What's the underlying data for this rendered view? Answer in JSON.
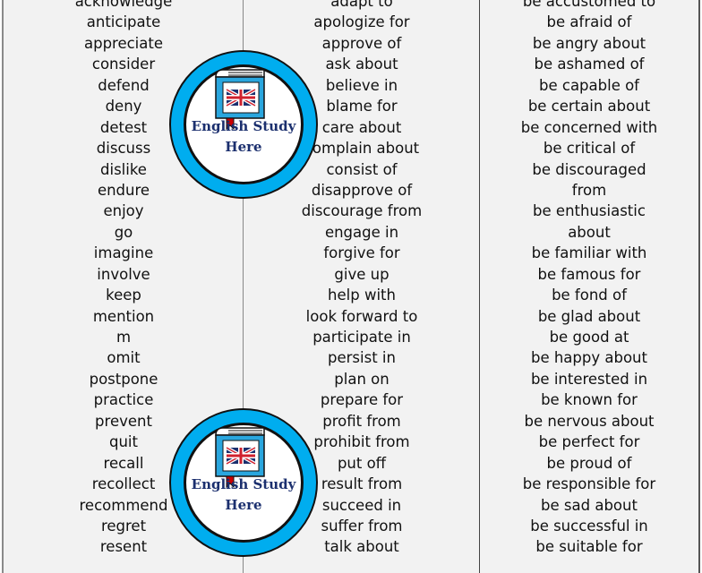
{
  "columns": [
    [
      "acknowledge",
      "anticipate",
      "appreciate",
      "consider",
      "defend",
      "deny",
      "detest",
      "discuss",
      "dislike",
      "endure",
      "enjoy",
      "go",
      "imagine",
      "involve",
      "keep",
      "mention",
      "m",
      "omit",
      "postpone",
      "practice",
      "prevent",
      "quit",
      "recall",
      "recollect",
      "recommend",
      "regret",
      "resent"
    ],
    [
      "adapt to",
      "apologize for",
      "approve of",
      "ask about",
      "believe in",
      "blame for",
      "care about",
      "complain about",
      "consist of",
      "disapprove of",
      "discourage from",
      "engage in",
      "forgive for",
      "give up",
      "help with",
      "look forward to",
      "participate in",
      "persist in",
      "plan on",
      "prepare for",
      "profit from",
      "prohibit from",
      "put off",
      "result from",
      "succeed in",
      "suffer from",
      "talk about"
    ],
    [
      "be accustomed to",
      "be afraid of",
      "be angry about",
      "be ashamed of",
      "be capable of",
      "be certain about",
      "be concerned with",
      "be critical of",
      "be discouraged",
      "from",
      "be enthusiastic",
      "about",
      "be familiar with",
      "be famous for",
      "be fond of",
      "be glad about",
      "be good at",
      "be happy about",
      "be interested in",
      "be known for",
      "be nervous about",
      "be perfect for",
      "be proud of",
      "be responsible for",
      "be sad about",
      "be successful in",
      "be suitable for"
    ]
  ],
  "logo": {
    "line1": "English Study",
    "line2": "Here",
    "ring_color": "#00adef",
    "text_color": "#1b2f6e"
  }
}
